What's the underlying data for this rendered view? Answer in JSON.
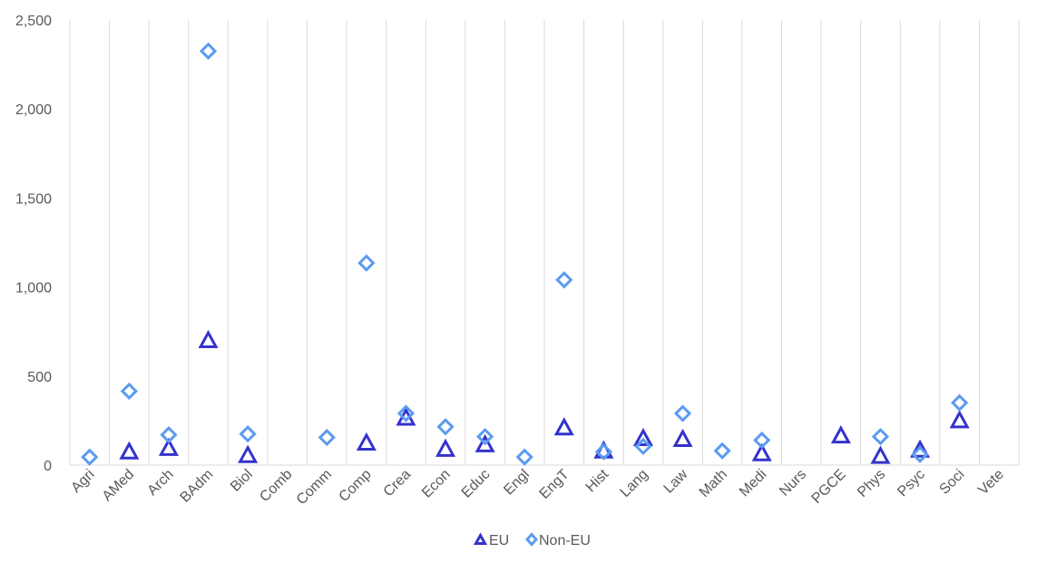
{
  "chart_data": {
    "type": "scatter",
    "title": "",
    "xlabel": "",
    "ylabel": "",
    "categories": [
      "Agri",
      "AMed",
      "Arch",
      "BAdm",
      "Biol",
      "Comb",
      "Comm",
      "Comp",
      "Crea",
      "Econ",
      "Educ",
      "Engl",
      "EngT",
      "Hist",
      "Lang",
      "Law",
      "Math",
      "Medi",
      "Nurs",
      "PGCE",
      "Phys",
      "Psyc",
      "Soci",
      "Vete"
    ],
    "ylim": [
      0,
      2500
    ],
    "yticks": [
      0,
      500,
      1000,
      1500,
      2000,
      2500
    ],
    "ytick_labels": [
      "0",
      "500",
      "1,000",
      "1,500",
      "2,000",
      "2,500"
    ],
    "grid": "vertical",
    "legend_position": "bottom",
    "series": [
      {
        "name": "EU",
        "marker": "triangle",
        "color": "#3333CC",
        "values": [
          null,
          75,
          95,
          700,
          55,
          null,
          null,
          125,
          265,
          90,
          115,
          null,
          210,
          80,
          150,
          145,
          null,
          65,
          null,
          165,
          50,
          85,
          250,
          null
        ]
      },
      {
        "name": "Non-EU",
        "marker": "diamond",
        "color": "#5B9BF0",
        "values": [
          45,
          415,
          170,
          2325,
          175,
          null,
          155,
          1135,
          290,
          215,
          160,
          45,
          1040,
          75,
          105,
          290,
          80,
          140,
          null,
          null,
          160,
          60,
          350,
          null
        ]
      }
    ]
  }
}
